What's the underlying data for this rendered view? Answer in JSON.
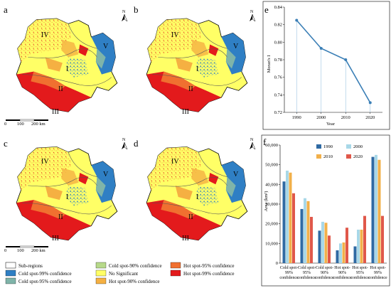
{
  "panels": {
    "a": "a",
    "b": "b",
    "c": "c",
    "d": "d",
    "e": "e",
    "f": "f"
  },
  "map": {
    "north": "N",
    "regions": [
      "I",
      "II",
      "III",
      "IV",
      "V"
    ],
    "scale": {
      "t0": "0",
      "t1": "100",
      "t2": "200 km"
    }
  },
  "legend": {
    "items": [
      {
        "label": "Sub-regions",
        "color": "#ffffff"
      },
      {
        "label": "Cold spot-99% confidence",
        "color": "#2f7fc4"
      },
      {
        "label": "Cold spot-95% confidence",
        "color": "#7fb4a9"
      },
      {
        "label": "Cold spot-90% confidence",
        "color": "#b7d98a"
      },
      {
        "label": "No Significant",
        "color": "#ffff66"
      },
      {
        "label": "Hot spot-90% confidence",
        "color": "#f5b042"
      },
      {
        "label": "Hot spot-95% confidence",
        "color": "#f07030"
      },
      {
        "label": "Hot spot-99% confidence",
        "color": "#e31a1c"
      }
    ]
  },
  "colors": {
    "line": "#3b7fb6",
    "bar_1990": "#2f6aa3",
    "bar_2000": "#a8d8e8",
    "bar_2010": "#f2b04a",
    "bar_2020": "#e0584a"
  },
  "chart_data": [
    {
      "type": "line",
      "panel": "e",
      "x": [
        1990,
        2000,
        2010,
        2020
      ],
      "y": [
        0.825,
        0.793,
        0.78,
        0.731
      ],
      "xlabel": "Year",
      "ylabel": "Moran's I",
      "ylim": [
        0.72,
        0.84
      ],
      "yticks": [
        "0.72",
        "0.74",
        "0.76",
        "0.78",
        "0.80",
        "0.82",
        "0.84"
      ],
      "xticks": [
        "1990",
        "2000",
        "2010",
        "2020"
      ]
    },
    {
      "type": "bar",
      "panel": "f",
      "categories": [
        "Cold spot-99% confidence",
        "Cold spot-95% confidence",
        "Cold spot-90% confidence",
        "Hot spot-90% confidence",
        "Hot spot-95% confidence",
        "Hot spot-99% confidence"
      ],
      "category_lines": [
        [
          "Cold spot-",
          "99%",
          "confidence"
        ],
        [
          "Cold spot-",
          "95%",
          "confidence"
        ],
        [
          "Cold spot-",
          "90%",
          "confidence"
        ],
        [
          "Hot spot-",
          "90%",
          "confidence"
        ],
        [
          "Hot spot-",
          "95%",
          "confidence"
        ],
        [
          "Hot spot-",
          "99%",
          "confidence"
        ]
      ],
      "series": [
        {
          "name": "1990",
          "values": [
            41500,
            27500,
            16500,
            6500,
            8500,
            54000
          ]
        },
        {
          "name": "2000",
          "values": [
            47000,
            33000,
            21000,
            10000,
            17000,
            55000
          ]
        },
        {
          "name": "2010",
          "values": [
            46000,
            31500,
            20500,
            10500,
            17000,
            52500
          ]
        },
        {
          "name": "2020",
          "values": [
            35500,
            23500,
            14000,
            18000,
            24000,
            24000
          ]
        }
      ],
      "ylabel": "Area (km²)",
      "ylim": [
        0,
        60000
      ],
      "yticks": [
        "0",
        "10,000",
        "20,000",
        "30,000",
        "40,000",
        "50,000",
        "60,000"
      ]
    }
  ]
}
